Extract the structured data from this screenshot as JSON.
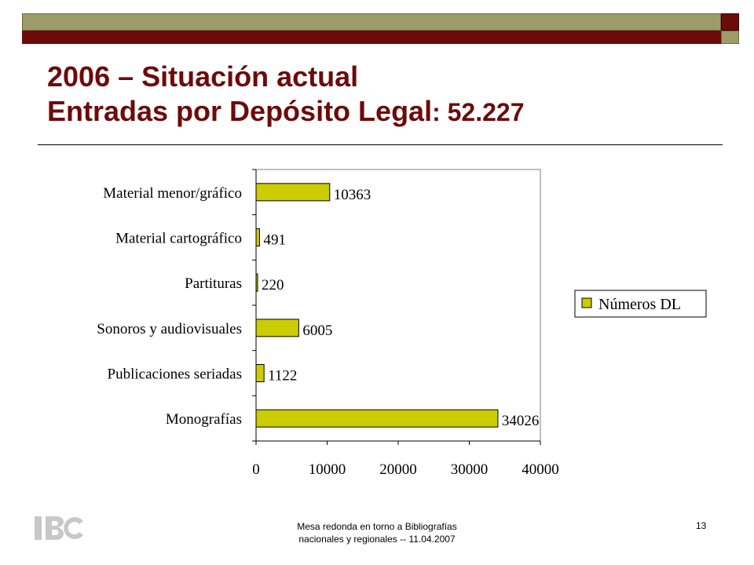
{
  "slide": {
    "title_line1": "2006 – Situación actual",
    "title_line2_text": "Entradas por Depósito Legal",
    "title_line2_number": ": 52.227",
    "footer_line1": "Mesa redonda en torno a Bibliografías",
    "footer_line2": "nacionales y regionales -- 11.04.2007",
    "page_number": "13",
    "logo_text": "IBC"
  },
  "colors": {
    "bar_fill": "#cccc00",
    "bar_stroke": "#000000",
    "title": "#6e0a0a",
    "band_red": "#6e0a0a",
    "band_olive": "#9c9c6a"
  },
  "chart_data": {
    "type": "bar",
    "orientation": "horizontal",
    "categories": [
      "Material menor/gráfico",
      "Material cartográfico",
      "Partituras",
      "Sonoros y audiovisuales",
      "Publicaciones seriadas",
      "Monografías"
    ],
    "series": [
      {
        "name": "Números DL",
        "values": [
          10363,
          491,
          220,
          6005,
          1122,
          34026
        ]
      }
    ],
    "xlim": [
      0,
      40000
    ],
    "xticks": [
      0,
      10000,
      20000,
      30000,
      40000
    ],
    "grid": false,
    "legend": "right",
    "data_labels": true
  }
}
